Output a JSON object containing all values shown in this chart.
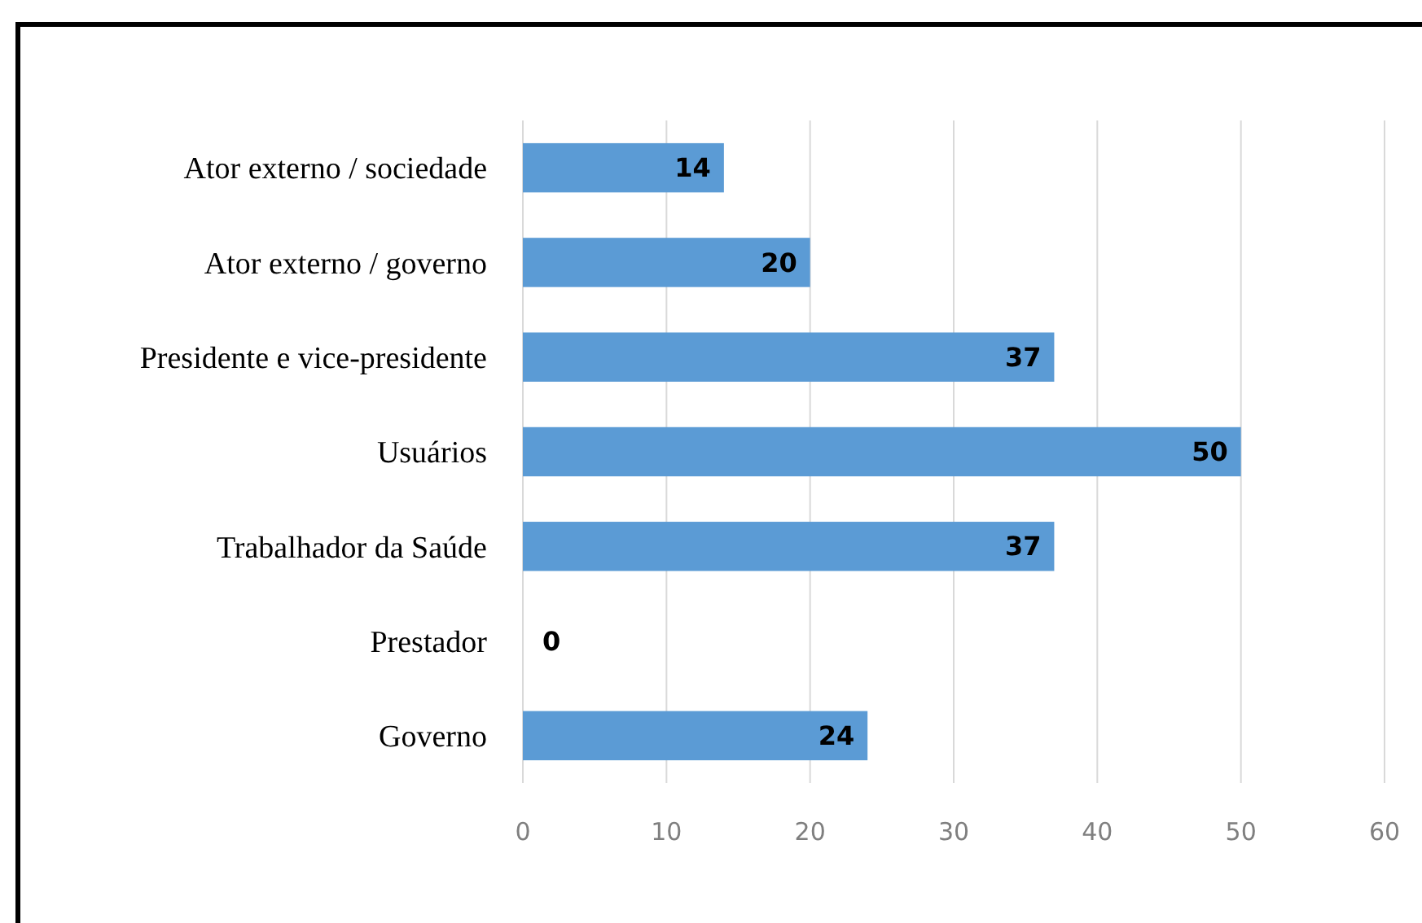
{
  "chart_data": {
    "type": "bar",
    "orientation": "horizontal",
    "categories": [
      "Ator externo / sociedade",
      "Ator externo / governo",
      "Presidente e vice-presidente",
      "Usuários",
      "Trabalhador da Saúde",
      "Prestador",
      "Governo"
    ],
    "values": [
      14,
      20,
      37,
      50,
      37,
      0,
      24
    ],
    "color": "#5b9bd5",
    "xlim": [
      0,
      60
    ],
    "xticks": [
      0,
      10,
      20,
      30,
      40,
      50,
      60
    ],
    "grid": "x",
    "data_labels": true
  }
}
